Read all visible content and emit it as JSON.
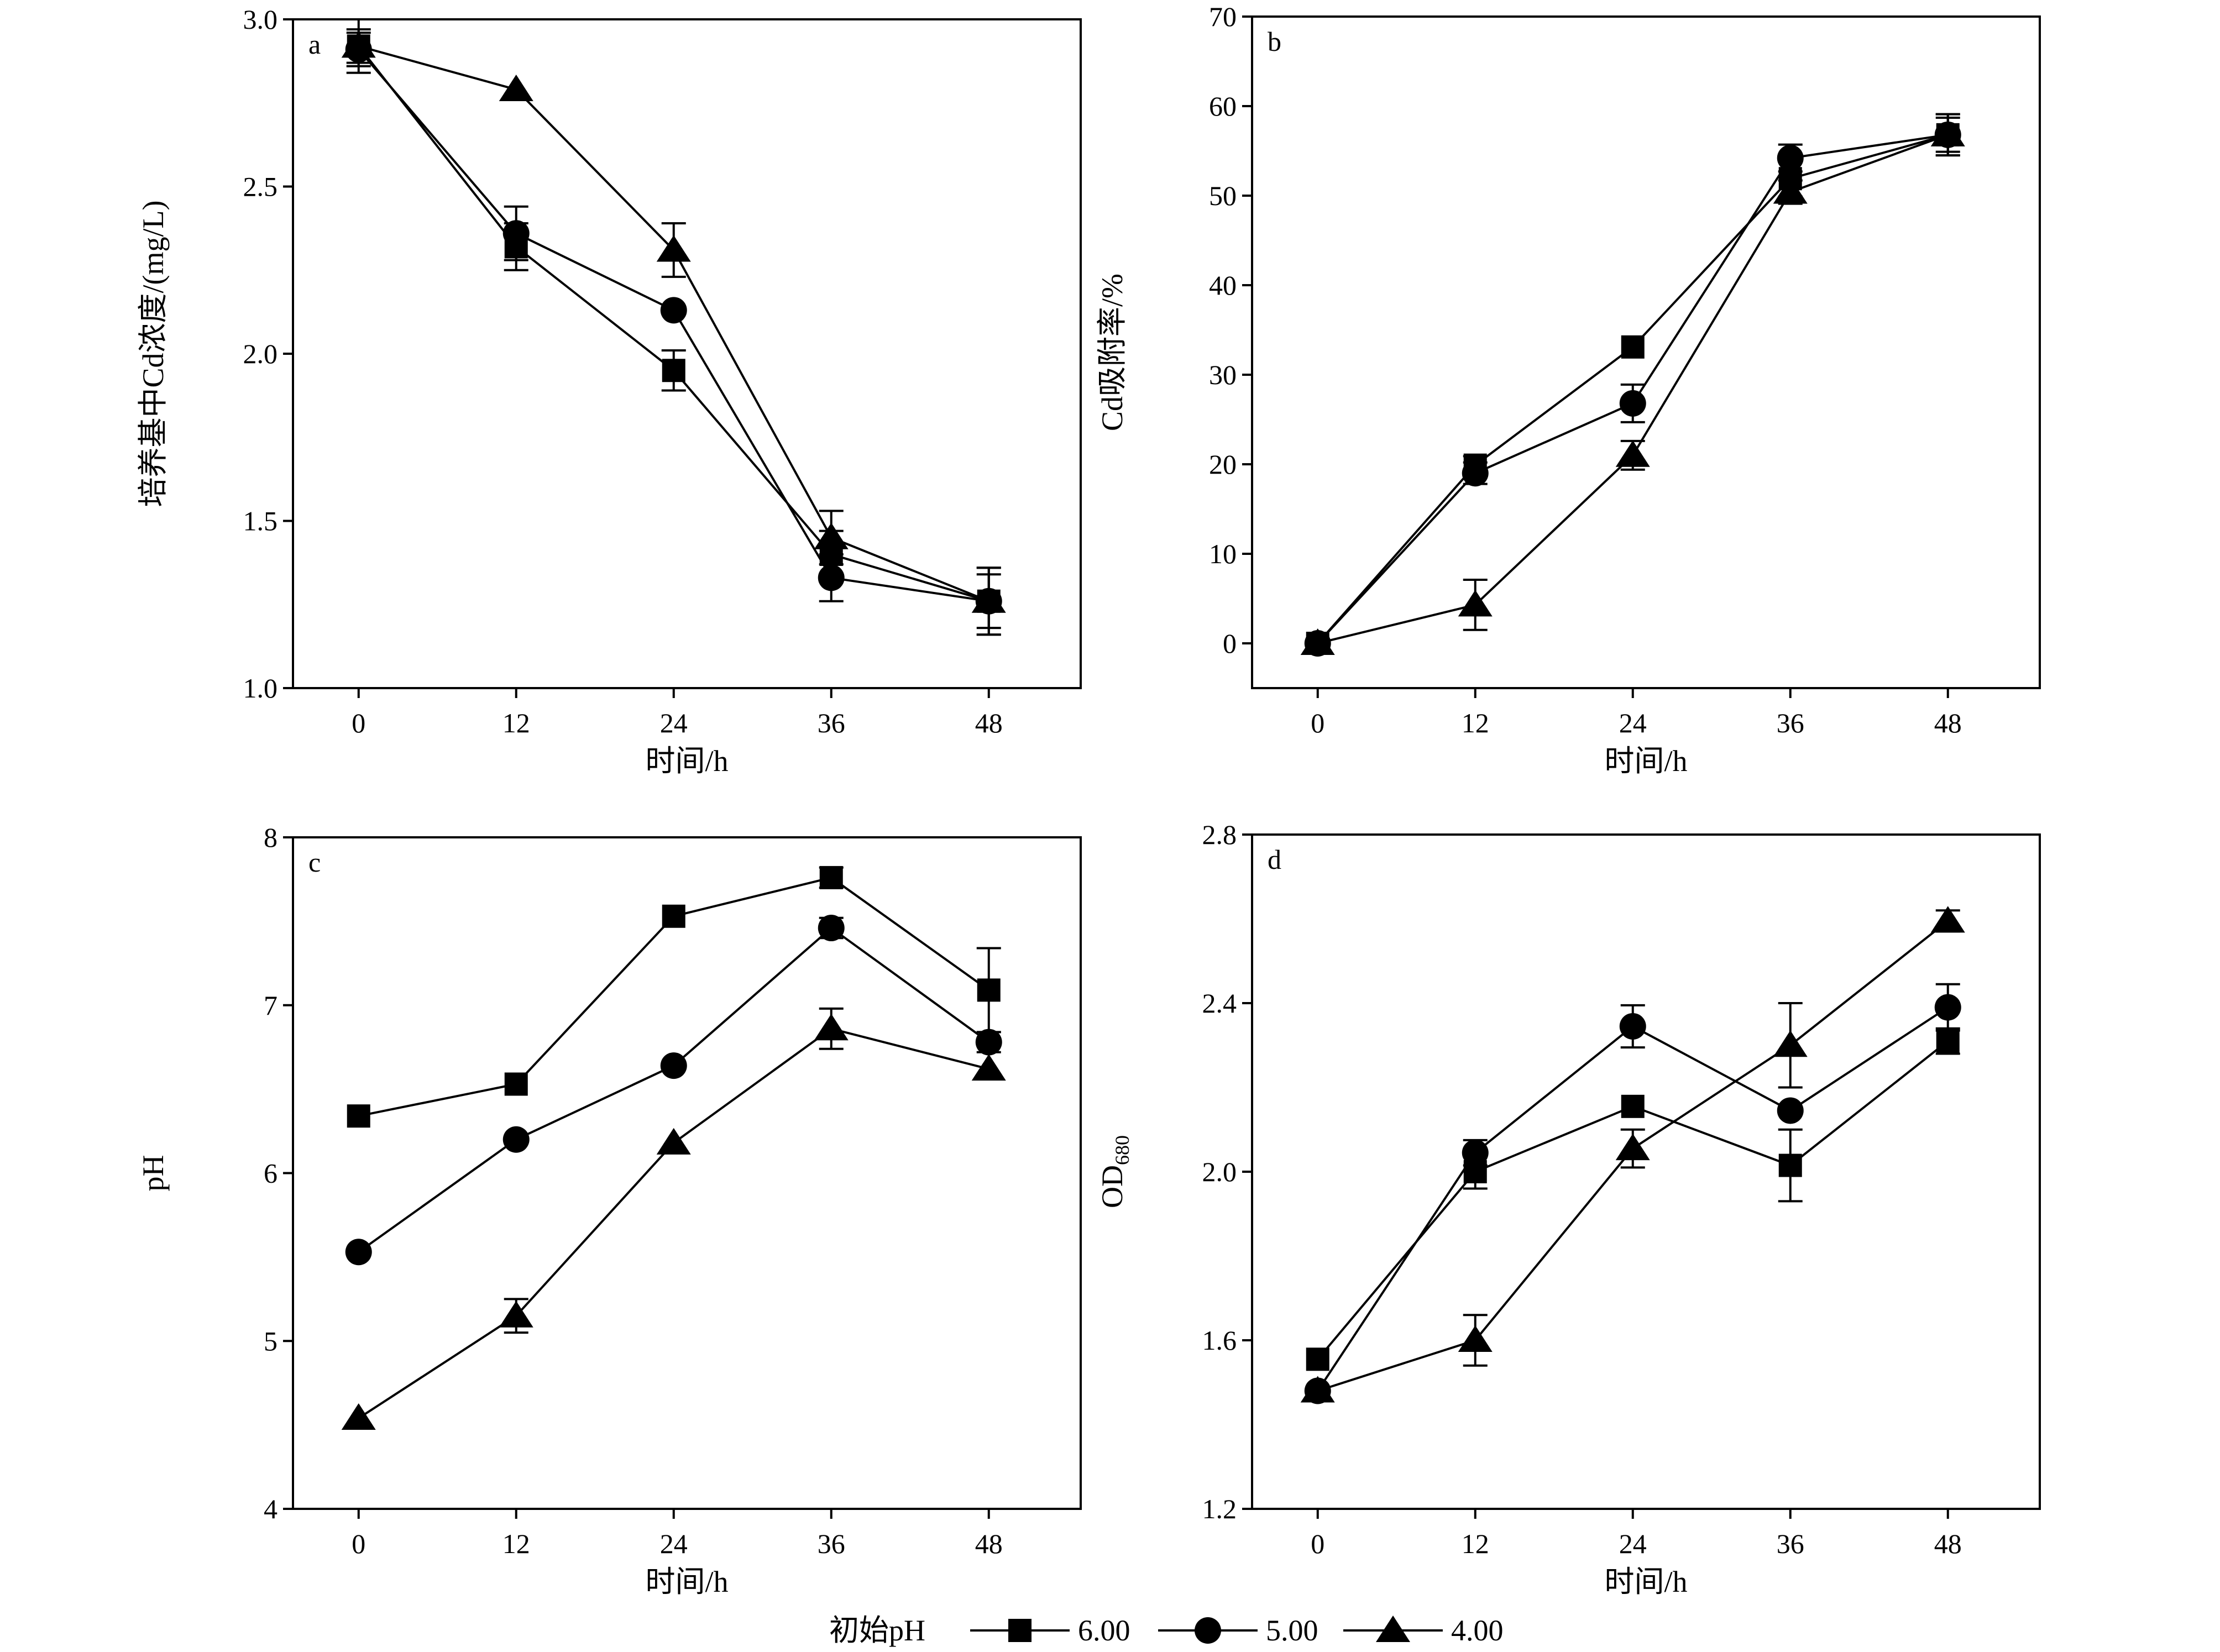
{
  "legend": {
    "title": "初始pH",
    "items": [
      {
        "label": "6.00",
        "marker": "square"
      },
      {
        "label": "5.00",
        "marker": "circle"
      },
      {
        "label": "4.00",
        "marker": "triangle"
      }
    ]
  },
  "chart_data": [
    {
      "type": "line",
      "panel": "a",
      "xlabel": "时间/h",
      "ylabel": "培养基中Cd浓度/(mg/L)",
      "x": [
        0,
        12,
        24,
        36,
        48
      ],
      "xticks": [
        "0",
        "12",
        "24",
        "36",
        "48"
      ],
      "xlim": [
        -5,
        55
      ],
      "ylim": [
        1.0,
        3.0
      ],
      "yticks": [
        "1.0",
        "1.5",
        "2.0",
        "2.5",
        "3.0"
      ],
      "ytick_values": [
        1.0,
        1.5,
        2.0,
        2.5,
        3.0
      ],
      "series": [
        {
          "name": "6.00",
          "marker": "square",
          "values": [
            2.92,
            2.32,
            1.95,
            1.4,
            1.26
          ],
          "errors": [
            0.08,
            0.07,
            0.06,
            0.07,
            0.1
          ]
        },
        {
          "name": "5.00",
          "marker": "circle",
          "values": [
            2.91,
            2.36,
            2.13,
            1.33,
            1.26
          ],
          "errors": [
            0.05,
            0.08,
            0.0,
            0.07,
            0.1
          ]
        },
        {
          "name": "4.00",
          "marker": "triangle",
          "values": [
            2.92,
            2.79,
            2.31,
            1.45,
            1.26
          ],
          "errors": [
            0.05,
            0.0,
            0.08,
            0.08,
            0.08
          ]
        }
      ]
    },
    {
      "type": "line",
      "panel": "b",
      "xlabel": "时间/h",
      "ylabel": "Cd吸附率/%",
      "x": [
        0,
        12,
        24,
        36,
        48
      ],
      "xticks": [
        "0",
        "12",
        "24",
        "36",
        "48"
      ],
      "xlim": [
        -5,
        55
      ],
      "ylim": [
        -5,
        70
      ],
      "yticks": [
        "0",
        "10",
        "20",
        "30",
        "40",
        "50",
        "60",
        "70"
      ],
      "ytick_values": [
        0,
        10,
        20,
        30,
        40,
        50,
        60,
        70
      ],
      "series": [
        {
          "name": "6.00",
          "marker": "square",
          "values": [
            0,
            19.9,
            33.1,
            51.9,
            56.8
          ],
          "errors": [
            0,
            1.0,
            0.0,
            2.0,
            2.3
          ]
        },
        {
          "name": "5.00",
          "marker": "circle",
          "values": [
            0,
            19.0,
            26.8,
            54.2,
            56.8
          ],
          "errors": [
            0,
            1.2,
            2.1,
            1.5,
            2.3
          ]
        },
        {
          "name": "4.00",
          "marker": "triangle",
          "values": [
            0,
            4.3,
            21.0,
            50.4,
            56.8
          ],
          "errors": [
            0,
            2.8,
            1.6,
            1.3,
            1.9
          ]
        }
      ]
    },
    {
      "type": "line",
      "panel": "c",
      "xlabel": "时间/h",
      "ylabel": "pH",
      "x": [
        0,
        12,
        24,
        36,
        48
      ],
      "xticks": [
        "0",
        "12",
        "24",
        "36",
        "48"
      ],
      "xlim": [
        -5,
        55
      ],
      "ylim": [
        4,
        8
      ],
      "yticks": [
        "4",
        "5",
        "6",
        "7",
        "8"
      ],
      "ytick_values": [
        4,
        5,
        6,
        7,
        8
      ],
      "series": [
        {
          "name": "6.00",
          "marker": "square",
          "values": [
            6.34,
            6.53,
            7.53,
            7.76,
            7.09
          ],
          "errors": [
            0,
            0,
            0,
            0.06,
            0.25
          ]
        },
        {
          "name": "5.00",
          "marker": "circle",
          "values": [
            5.53,
            6.2,
            6.64,
            7.46,
            6.78
          ],
          "errors": [
            0,
            0,
            0,
            0.06,
            0.06
          ]
        },
        {
          "name": "4.00",
          "marker": "triangle",
          "values": [
            4.54,
            5.15,
            6.18,
            6.86,
            6.62
          ],
          "errors": [
            0,
            0.1,
            0,
            0.12,
            0
          ]
        }
      ]
    },
    {
      "type": "line",
      "panel": "d",
      "xlabel": "时间/h",
      "ylabel_main": "OD",
      "ylabel_sub": "680",
      "x": [
        0,
        12,
        24,
        36,
        48
      ],
      "xticks": [
        "0",
        "12",
        "24",
        "36",
        "48"
      ],
      "xlim": [
        -5,
        55
      ],
      "ylim": [
        1.2,
        2.8
      ],
      "yticks": [
        "1.2",
        "1.6",
        "2.0",
        "2.4",
        "2.8"
      ],
      "ytick_values": [
        1.2,
        1.6,
        2.0,
        2.4,
        2.8
      ],
      "series": [
        {
          "name": "6.00",
          "marker": "square",
          "values": [
            1.555,
            2.0,
            2.155,
            2.015,
            2.31
          ],
          "errors": [
            0,
            0.04,
            0,
            0.085,
            0.03
          ]
        },
        {
          "name": "5.00",
          "marker": "circle",
          "values": [
            1.48,
            2.045,
            2.345,
            2.145,
            2.39
          ],
          "errors": [
            0,
            0.03,
            0.05,
            0,
            0.055
          ]
        },
        {
          "name": "4.00",
          "marker": "triangle",
          "values": [
            1.48,
            1.6,
            2.055,
            2.3,
            2.595
          ],
          "errors": [
            0,
            0.06,
            0.045,
            0.1,
            0.025
          ]
        }
      ]
    }
  ]
}
